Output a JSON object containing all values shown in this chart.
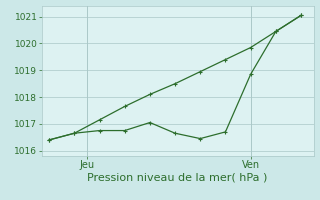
{
  "line1_x": [
    0,
    1,
    2,
    3,
    4,
    5,
    6,
    7,
    8,
    9,
    10
  ],
  "line1_y": [
    1016.4,
    1016.65,
    1016.75,
    1016.75,
    1017.05,
    1016.65,
    1016.45,
    1016.7,
    1018.85,
    1020.45,
    1021.05
  ],
  "line2_x": [
    0,
    1,
    2,
    3,
    4,
    5,
    6,
    7,
    8,
    9,
    10
  ],
  "line2_y": [
    1016.4,
    1016.65,
    1017.15,
    1017.65,
    1018.1,
    1018.5,
    1018.95,
    1019.4,
    1019.85,
    1020.45,
    1021.05
  ],
  "line_color": "#2d6e2d",
  "background_color": "#cce8e8",
  "plot_area_color": "#ddf2f2",
  "grid_color": "#aac8c8",
  "xlabel": "Pression niveau de la mer( hPa )",
  "xlabel_fontsize": 8,
  "ylim": [
    1015.8,
    1021.4
  ],
  "yticks": [
    1016,
    1017,
    1018,
    1019,
    1020,
    1021
  ],
  "ytick_fontsize": 6.5,
  "xtick_labels_pos": [
    1.5,
    8.0
  ],
  "xtick_labels": [
    "Jeu",
    "Ven"
  ],
  "xtick_fontsize": 7,
  "vline_positions": [
    1.5,
    8.0
  ],
  "xlim": [
    -0.3,
    10.5
  ],
  "marker_size": 3,
  "linewidth": 0.9
}
